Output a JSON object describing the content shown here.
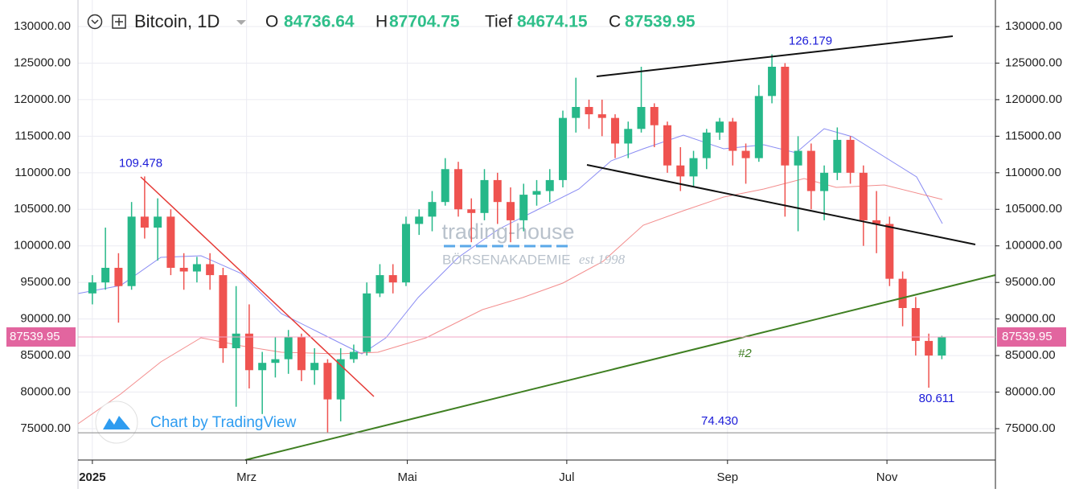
{
  "chart_data": {
    "type": "candlestick",
    "symbol": "Bitcoin, 1D",
    "ohlc": [
      {
        "label": "O",
        "value": 84736.64
      },
      {
        "label": "H",
        "value": 87704.75
      },
      {
        "label": "Tief",
        "value": 84674.15
      },
      {
        "label": "C",
        "value": 87539.95
      }
    ],
    "up_color": "#26b889",
    "down_color": "#ef5350",
    "candles": [
      [
        93500,
        96000,
        92000,
        95000
      ],
      [
        95000,
        102500,
        94000,
        97000
      ],
      [
        97000,
        99000,
        89500,
        94500
      ],
      [
        94500,
        106000,
        94000,
        104000
      ],
      [
        104000,
        109500,
        101000,
        102500
      ],
      [
        102500,
        106500,
        98000,
        104000
      ],
      [
        104000,
        105000,
        96000,
        97000
      ],
      [
        97000,
        99000,
        94000,
        96500
      ],
      [
        96500,
        98500,
        95000,
        97500
      ],
      [
        97500,
        99000,
        94000,
        96000
      ],
      [
        96000,
        97000,
        84000,
        86000
      ],
      [
        86000,
        94500,
        78000,
        88000
      ],
      [
        88000,
        92000,
        80500,
        83000
      ],
      [
        83000,
        85500,
        77000,
        84000
      ],
      [
        84000,
        87500,
        82000,
        84500
      ],
      [
        84500,
        88500,
        82500,
        87500
      ],
      [
        87500,
        88000,
        81500,
        83000
      ],
      [
        83000,
        86000,
        81000,
        84000
      ],
      [
        84000,
        84500,
        74500,
        79000
      ],
      [
        79000,
        86000,
        76000,
        84500
      ],
      [
        84500,
        86500,
        84000,
        85500
      ],
      [
        85500,
        95000,
        85000,
        93500
      ],
      [
        93500,
        97500,
        93000,
        96000
      ],
      [
        96000,
        97500,
        93500,
        95000
      ],
      [
        95000,
        104000,
        94500,
        103000
      ],
      [
        103000,
        105000,
        101500,
        104000
      ],
      [
        104000,
        107500,
        102000,
        106000
      ],
      [
        106000,
        112000,
        105500,
        110500
      ],
      [
        110500,
        111500,
        104000,
        105000
      ],
      [
        105000,
        106500,
        100500,
        104500
      ],
      [
        104500,
        110500,
        103500,
        109000
      ],
      [
        109000,
        110000,
        103000,
        106000
      ],
      [
        106000,
        108000,
        100500,
        103500
      ],
      [
        103500,
        108500,
        102000,
        107000
      ],
      [
        107000,
        109000,
        105500,
        107500
      ],
      [
        107500,
        110500,
        106000,
        109000
      ],
      [
        109000,
        118500,
        108000,
        117500
      ],
      [
        117500,
        123000,
        115500,
        119000
      ],
      [
        119000,
        120000,
        116000,
        118000
      ],
      [
        118000,
        120000,
        115000,
        117500
      ],
      [
        117500,
        118000,
        112000,
        114000
      ],
      [
        114000,
        117000,
        112000,
        116000
      ],
      [
        116000,
        124500,
        115500,
        119000
      ],
      [
        119000,
        119500,
        113500,
        116500
      ],
      [
        116500,
        117000,
        110000,
        111000
      ],
      [
        111000,
        113500,
        107500,
        109500
      ],
      [
        109500,
        113000,
        108000,
        112000
      ],
      [
        112000,
        116000,
        110500,
        115500
      ],
      [
        115500,
        117500,
        114500,
        117000
      ],
      [
        117000,
        117500,
        111000,
        113000
      ],
      [
        113000,
        114000,
        108500,
        112000
      ],
      [
        112000,
        122000,
        111500,
        120500
      ],
      [
        120500,
        126200,
        119500,
        124500
      ],
      [
        124500,
        125000,
        104000,
        111000
      ],
      [
        111000,
        115000,
        102000,
        113000
      ],
      [
        113000,
        114000,
        105000,
        107500
      ],
      [
        107500,
        111000,
        103500,
        110000
      ],
      [
        110000,
        116200,
        109000,
        114500
      ],
      [
        114500,
        115000,
        108500,
        110000
      ],
      [
        110000,
        111000,
        100000,
        103500
      ],
      [
        103500,
        107500,
        99000,
        103000
      ],
      [
        103000,
        104000,
        94500,
        95500
      ],
      [
        95500,
        96500,
        89000,
        91500
      ],
      [
        91500,
        93000,
        85000,
        87000
      ],
      [
        87000,
        88000,
        80600,
        85000
      ],
      [
        85000,
        87700,
        84500,
        87500
      ]
    ],
    "xlim": [
      -1.1,
      69.1
    ],
    "xticks": [
      {
        "value": 0,
        "label": "2025"
      },
      {
        "value": 11.8,
        "label": "Mrz"
      },
      {
        "value": 24.1,
        "label": "Mai"
      },
      {
        "value": 36.3,
        "label": "Jul"
      },
      {
        "value": 48.6,
        "label": "Sep"
      },
      {
        "value": 60.8,
        "label": "Nov"
      }
    ],
    "ylim": [
      70710,
      133630
    ],
    "yticks": [
      {
        "value": 75000,
        "label": "75000.00"
      },
      {
        "value": 80000,
        "label": "80000.00"
      },
      {
        "value": 85000,
        "label": "85000.00"
      },
      {
        "value": 90000,
        "label": "90000.00"
      },
      {
        "value": 95000,
        "label": "95000.00"
      },
      {
        "value": 100000,
        "label": "100000.00"
      },
      {
        "value": 105000,
        "label": "105000.00"
      },
      {
        "value": 110000,
        "label": "110000.00"
      },
      {
        "value": 115000,
        "label": "115000.00"
      },
      {
        "value": 120000,
        "label": "120000.00"
      },
      {
        "value": 125000,
        "label": "125000.00"
      },
      {
        "value": 130000,
        "label": "130000.00"
      }
    ],
    "last_price": 87539.95,
    "annotations": [
      {
        "value": 109478,
        "label": "109.478"
      },
      {
        "value": 126179,
        "label": "126.179"
      },
      {
        "value": 80611,
        "label": "80.611"
      },
      {
        "value": 74430,
        "label": "74.430"
      }
    ],
    "trendline_label": "#2",
    "watermark": {
      "brand": "trading-house",
      "sub": "BÖRSENAKADEMIE",
      "est": "est 1998"
    },
    "credit": "Chart by TradingView",
    "grid": true
  }
}
